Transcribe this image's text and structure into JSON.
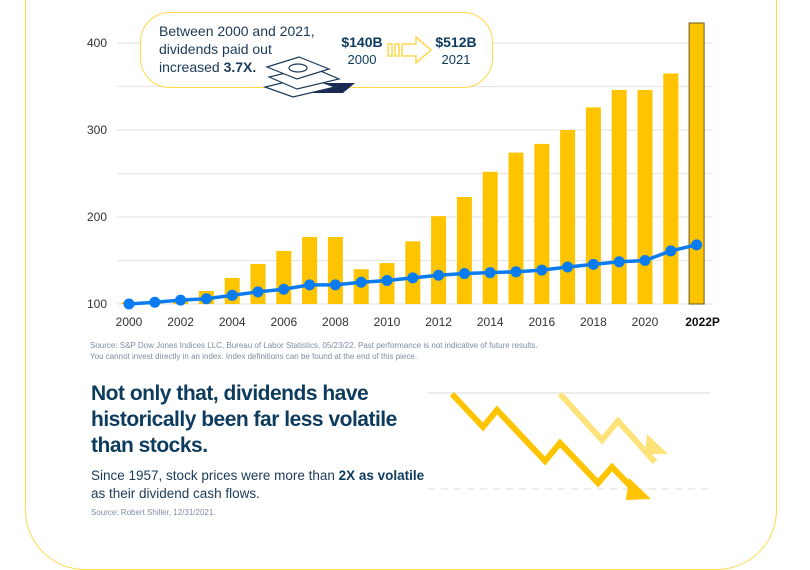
{
  "callout": {
    "text_pre": "Between 2000 and 2021, dividends paid out increased ",
    "text_bold": "3.7X.",
    "from_value": "$140B",
    "from_year": "2000",
    "to_value": "$512B",
    "to_year": "2021"
  },
  "source_note": "Source: S&P Dow Jones Indices LLC, Bureau of Labor Statistics, 05/23/22. Past performance is not indicative of future results. You cannot invest directly in an index. Index definitions can be found at the end of this piece.",
  "headline": "Not only that, dividends have historically been far less volatile than stocks.",
  "subtext": {
    "pre": "Since 1957, stock prices were more than ",
    "bold": "2X as volatile",
    "post": " as their dividend cash flows."
  },
  "source_note_2": "Source: Robert Shiller, 12/31/2021.",
  "colors": {
    "bars": "#ffc400",
    "line": "#0a7cf0",
    "accent": "#ffd84a",
    "text": "#0d3b5e"
  },
  "icons": [
    "money-stack-icon",
    "arrow-right-icon",
    "zigzag-down-arrow-icon"
  ],
  "chart_data": {
    "type": "bar+line",
    "categories": [
      "2000",
      "2001",
      "2002",
      "2003",
      "2004",
      "2005",
      "2006",
      "2007",
      "2008",
      "2009",
      "2010",
      "2011",
      "2012",
      "2013",
      "2014",
      "2015",
      "2016",
      "2017",
      "2018",
      "2019",
      "2020",
      "2021",
      "2022P"
    ],
    "x_tick_labels": [
      "2000",
      "2002",
      "2004",
      "2006",
      "2008",
      "2010",
      "2012",
      "2014",
      "2016",
      "2018",
      "2020",
      "2022P"
    ],
    "y_tick_labels": [
      "100",
      "200",
      "300",
      "400"
    ],
    "ylim": [
      100,
      430
    ],
    "grid": true,
    "series": [
      {
        "type": "bar",
        "values": [
          102,
          101,
          103,
          115,
          130,
          146,
          161,
          177,
          177,
          140,
          147,
          172,
          201,
          223,
          252,
          274,
          284,
          300,
          326,
          346,
          346,
          365,
          423
        ]
      },
      {
        "type": "line",
        "values": [
          100,
          102,
          104.5,
          106,
          110,
          114,
          117,
          122,
          122,
          125,
          127,
          130,
          133,
          135,
          136,
          137,
          139,
          142.5,
          145.5,
          148.5,
          150,
          161,
          168
        ]
      }
    ]
  }
}
